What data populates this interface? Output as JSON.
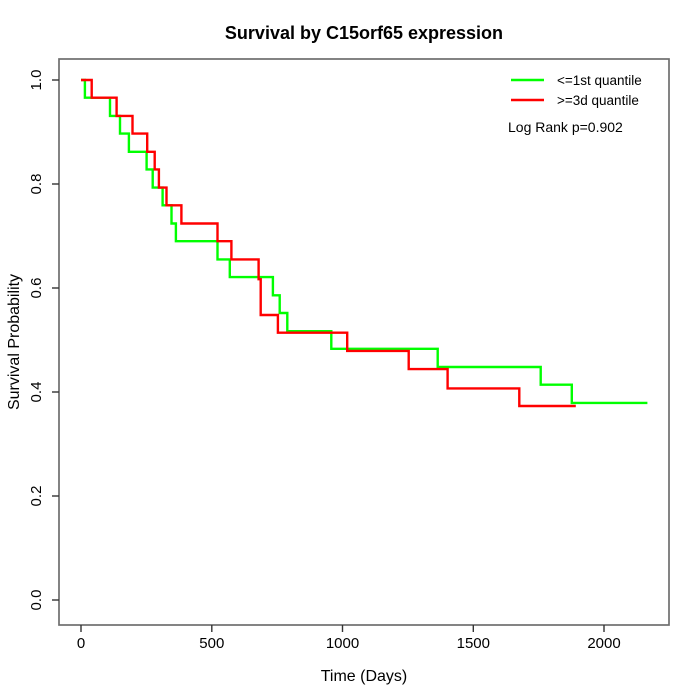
{
  "title": "Survival by C15orf65 expression",
  "axes": {
    "x": {
      "label": "Time (Days)",
      "ticks": [
        "0",
        "500",
        "1000",
        "1500",
        "2000"
      ],
      "tick_values": [
        0,
        500,
        1000,
        1500,
        2000
      ]
    },
    "y": {
      "label": "Survival Probability",
      "ticks": [
        "0.0",
        "0.2",
        "0.4",
        "0.6",
        "0.8",
        "1.0"
      ],
      "tick_values": [
        0,
        0.2,
        0.4,
        0.6,
        0.8,
        1.0
      ]
    }
  },
  "legend": {
    "items": [
      {
        "label": "<=1st quantile",
        "color": "#00ff00"
      },
      {
        "label": ">=3d quantile",
        "color": "#ff0000"
      }
    ],
    "stats_label": "Log Rank p=0.902"
  },
  "chart_data": {
    "type": "line",
    "subtype": "kaplan_meier_step",
    "title": "Survival by C15orf65 expression",
    "xlabel": "Time (Days)",
    "ylabel": "Survival Probability",
    "xlim": [
      0,
      2200
    ],
    "ylim": [
      0.0,
      1.0
    ],
    "grid": false,
    "legend_position": "top-right",
    "annotations": [
      "Log Rank p=0.902"
    ],
    "series": [
      {
        "name": "<=1st quantile",
        "color": "#00ff00",
        "steps": [
          [
            0,
            1.0
          ],
          [
            15,
            0.966
          ],
          [
            111,
            0.931
          ],
          [
            149,
            0.897
          ],
          [
            183,
            0.862
          ],
          [
            251,
            0.828
          ],
          [
            274,
            0.793
          ],
          [
            312,
            0.759
          ],
          [
            346,
            0.724
          ],
          [
            363,
            0.69
          ],
          [
            522,
            0.655
          ],
          [
            569,
            0.621
          ],
          [
            734,
            0.586
          ],
          [
            760,
            0.552
          ],
          [
            789,
            0.517
          ],
          [
            957,
            0.483
          ],
          [
            1364,
            0.448
          ],
          [
            1758,
            0.414
          ],
          [
            1877,
            0.379
          ]
        ],
        "end_time": 2166
      },
      {
        "name": ">=3d quantile",
        "color": "#ff0000",
        "steps": [
          [
            0,
            1.0
          ],
          [
            41,
            0.966
          ],
          [
            136,
            0.931
          ],
          [
            197,
            0.897
          ],
          [
            253,
            0.862
          ],
          [
            282,
            0.828
          ],
          [
            298,
            0.793
          ],
          [
            327,
            0.759
          ],
          [
            384,
            0.724
          ],
          [
            522,
            0.69
          ],
          [
            575,
            0.655
          ],
          [
            679,
            0.617
          ],
          [
            687,
            0.548
          ],
          [
            753,
            0.514
          ],
          [
            1018,
            0.479
          ],
          [
            1253,
            0.444
          ],
          [
            1402,
            0.407
          ],
          [
            1676,
            0.373
          ]
        ],
        "end_time": 1892
      }
    ]
  }
}
